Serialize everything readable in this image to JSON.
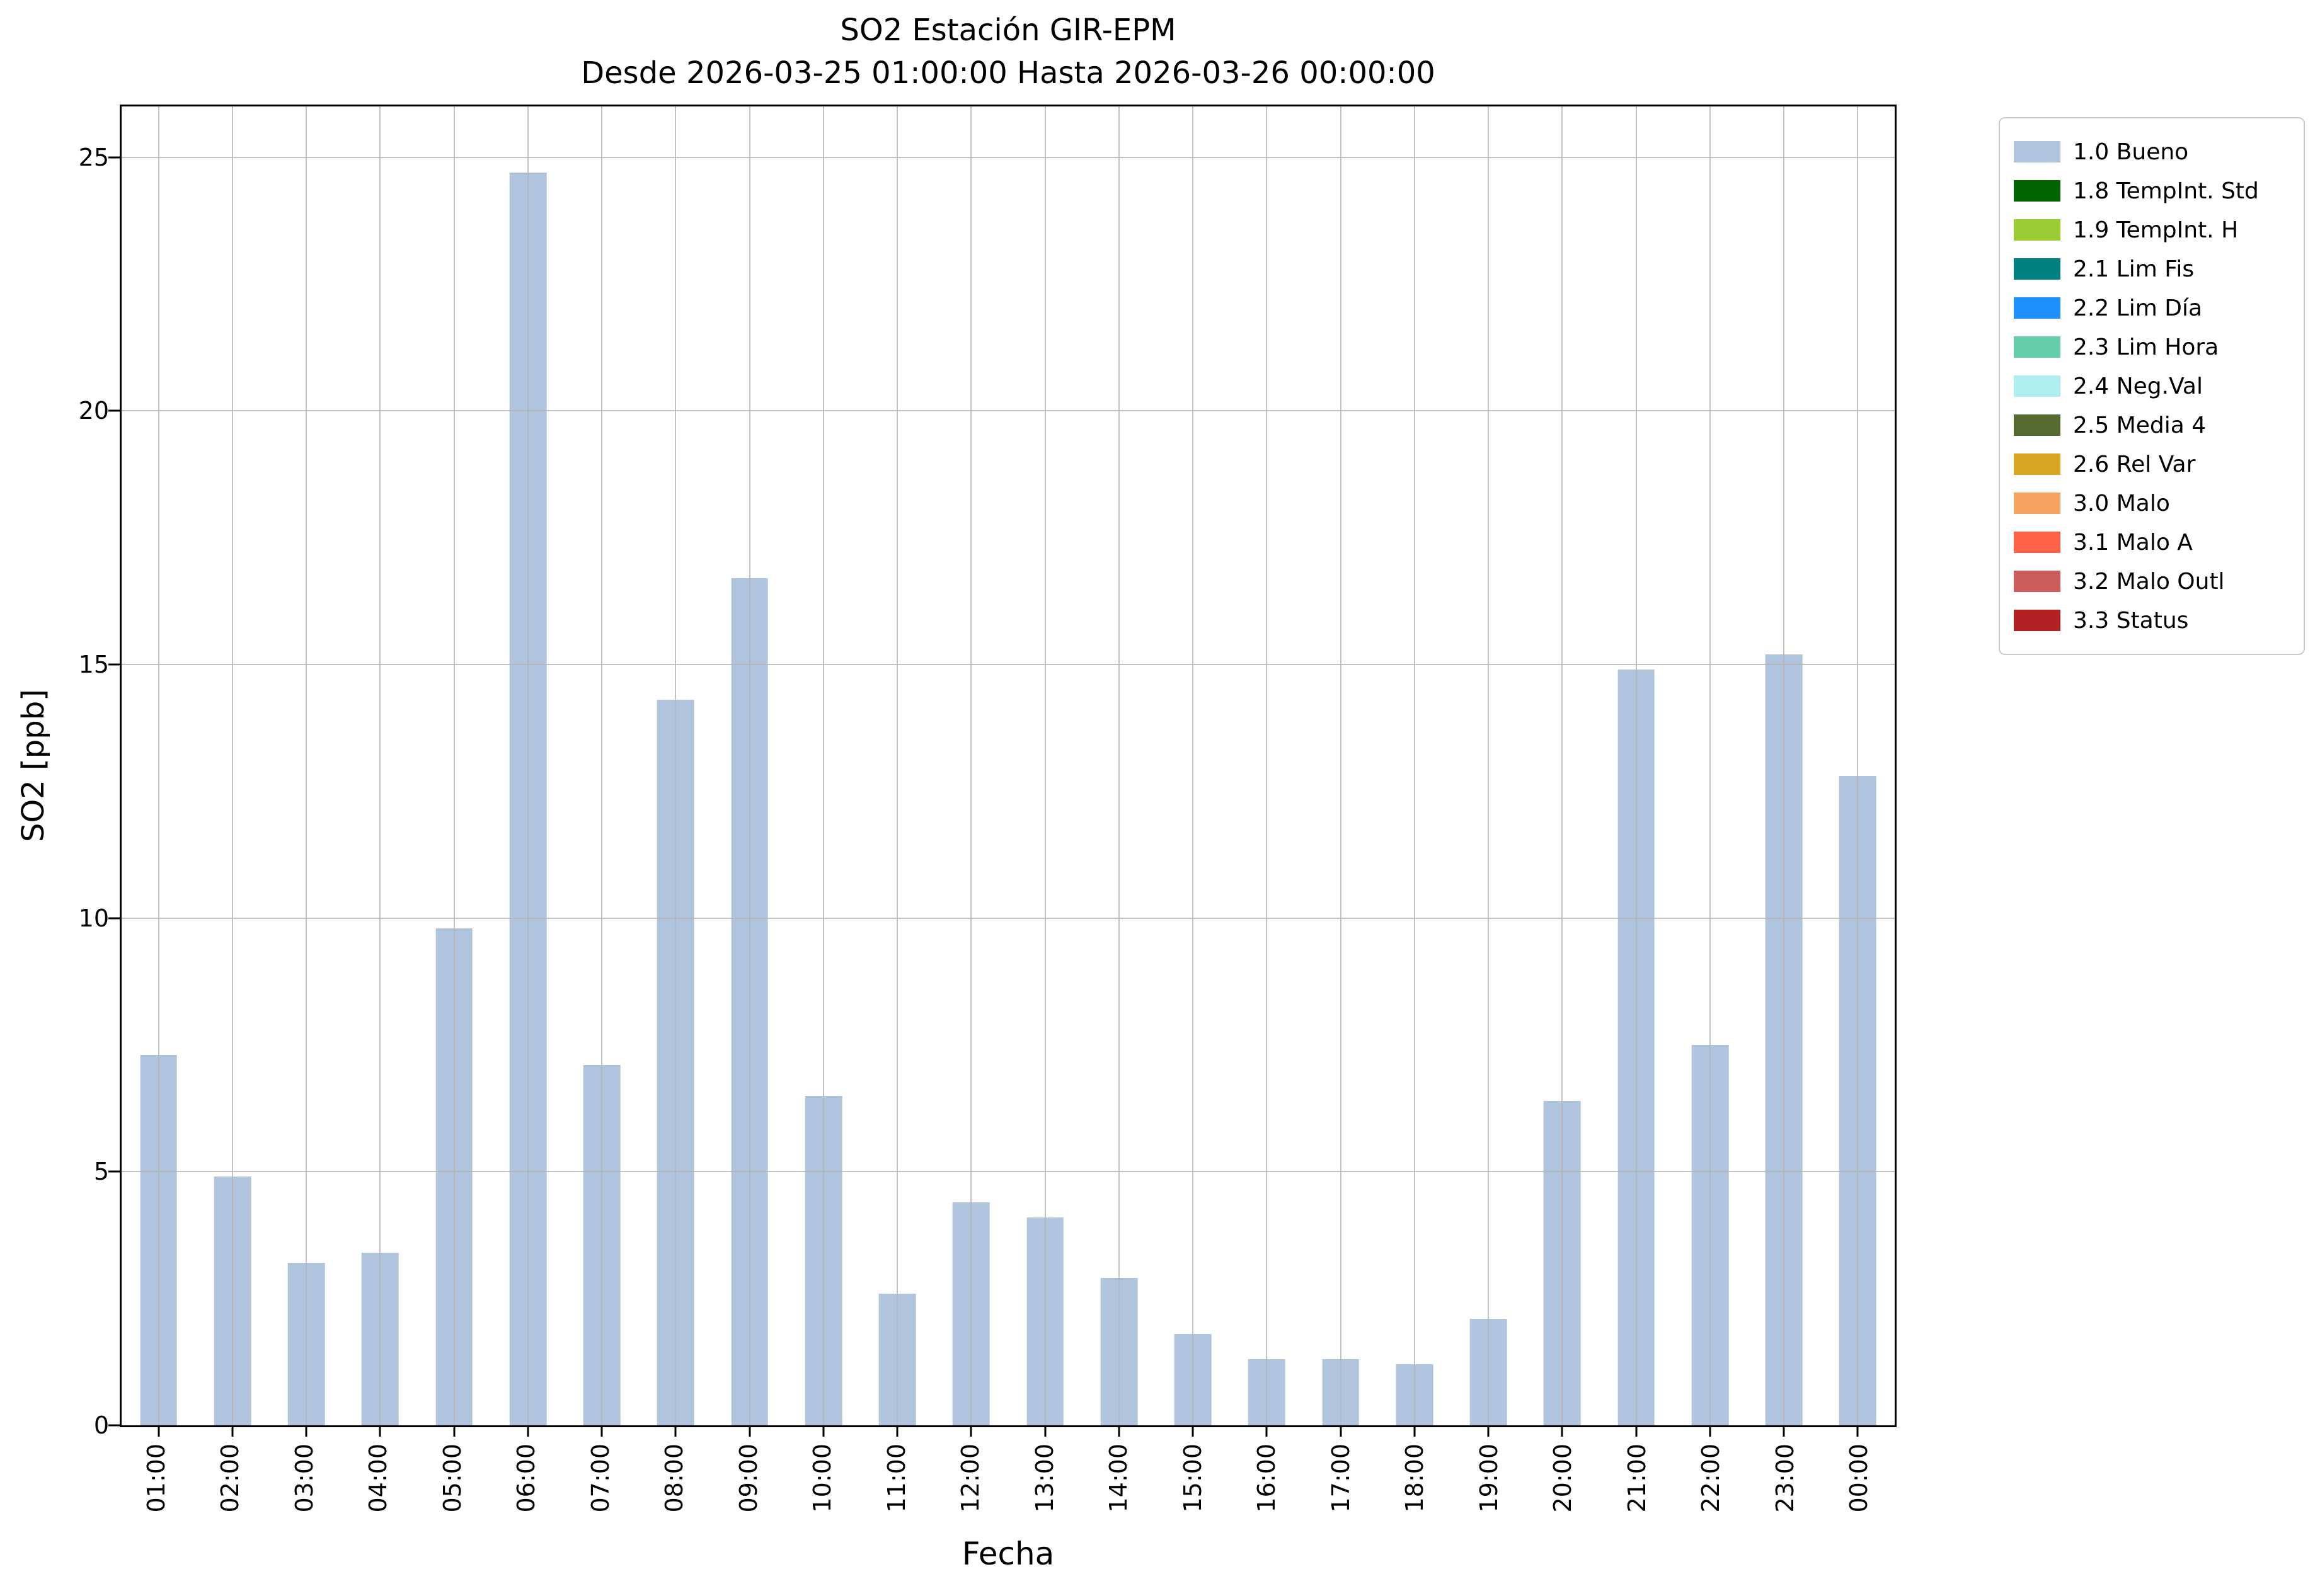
{
  "chart_data": {
    "type": "bar",
    "title": "SO2 Estación GIR-EPM",
    "subtitle": "Desde 2026-03-25 01:00:00 Hasta 2026-03-26 00:00:00",
    "xlabel": "Fecha",
    "ylabel": "SO2 [ppb]",
    "categories": [
      "01:00",
      "02:00",
      "03:00",
      "04:00",
      "05:00",
      "06:00",
      "07:00",
      "08:00",
      "09:00",
      "10:00",
      "11:00",
      "12:00",
      "13:00",
      "14:00",
      "15:00",
      "16:00",
      "17:00",
      "18:00",
      "19:00",
      "20:00",
      "21:00",
      "22:00",
      "23:00",
      "00:00"
    ],
    "values": [
      7.3,
      4.9,
      3.2,
      3.4,
      9.8,
      24.7,
      7.1,
      14.3,
      16.7,
      6.5,
      2.6,
      4.4,
      4.1,
      2.9,
      1.8,
      1.3,
      1.3,
      1.2,
      2.1,
      6.4,
      14.9,
      7.5,
      15.2,
      12.8
    ],
    "bar_color": "#b0c4de",
    "ylim": [
      0,
      26
    ],
    "yticks": [
      0,
      5,
      10,
      15,
      20,
      25
    ],
    "grid": true,
    "legend": {
      "position": "right",
      "entries": [
        {
          "label": "1.0 Bueno",
          "color": "#b0c4de"
        },
        {
          "label": "1.8 TempInt. Std",
          "color": "#006400"
        },
        {
          "label": "1.9 TempInt. H",
          "color": "#9acd32"
        },
        {
          "label": "2.1 Lim Fis",
          "color": "#008080"
        },
        {
          "label": "2.2 Lim Día",
          "color": "#1e90ff"
        },
        {
          "label": "2.3 Lim Hora",
          "color": "#66cdaa"
        },
        {
          "label": "2.4 Neg.Val",
          "color": "#afeeee"
        },
        {
          "label": "2.5 Media 4",
          "color": "#556b2f"
        },
        {
          "label": "2.6 Rel Var",
          "color": "#daa520"
        },
        {
          "label": "3.0 Malo",
          "color": "#f4a460"
        },
        {
          "label": "3.1 Malo A",
          "color": "#ff6347"
        },
        {
          "label": "3.2 Malo Outl",
          "color": "#cd5c5c"
        },
        {
          "label": "3.3 Status",
          "color": "#b22222"
        }
      ]
    }
  }
}
